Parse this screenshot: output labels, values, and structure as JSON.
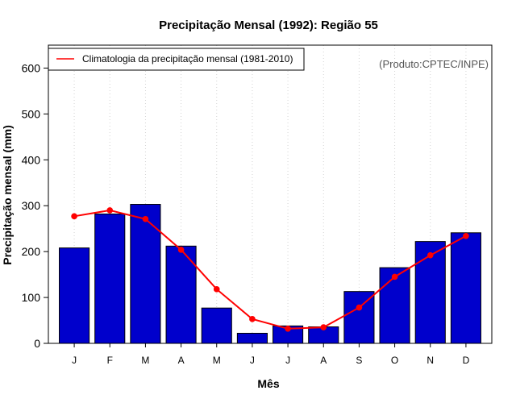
{
  "colors": {
    "bar_fill": "#0000CC",
    "bar_stroke": "#000000",
    "line": "#FF0000",
    "grid": "#D3D3D3"
  },
  "chart_data": {
    "type": "bar",
    "title": "Precipitação Mensal (1992): Região 55",
    "xlabel": "Mês",
    "ylabel": "Precipitação mensal (mm)",
    "categories": [
      "J",
      "F",
      "M",
      "A",
      "M",
      "J",
      "J",
      "A",
      "S",
      "O",
      "N",
      "D"
    ],
    "ylim": [
      0,
      650
    ],
    "yticks": [
      0,
      100,
      200,
      300,
      400,
      500,
      600
    ],
    "grid": "vertical dotted",
    "legend_position": "top-left",
    "credit": "(Produto:CPTEC/INPE)",
    "series": [
      {
        "name": "1992",
        "type": "bar",
        "values": [
          208,
          282,
          303,
          212,
          77,
          22,
          38,
          36,
          113,
          165,
          222,
          241
        ]
      },
      {
        "name": "Climatologia da precipitação mensal (1981-2010)",
        "type": "line",
        "values": [
          277,
          290,
          271,
          204,
          118,
          53,
          32,
          35,
          78,
          145,
          192,
          234
        ]
      }
    ]
  }
}
